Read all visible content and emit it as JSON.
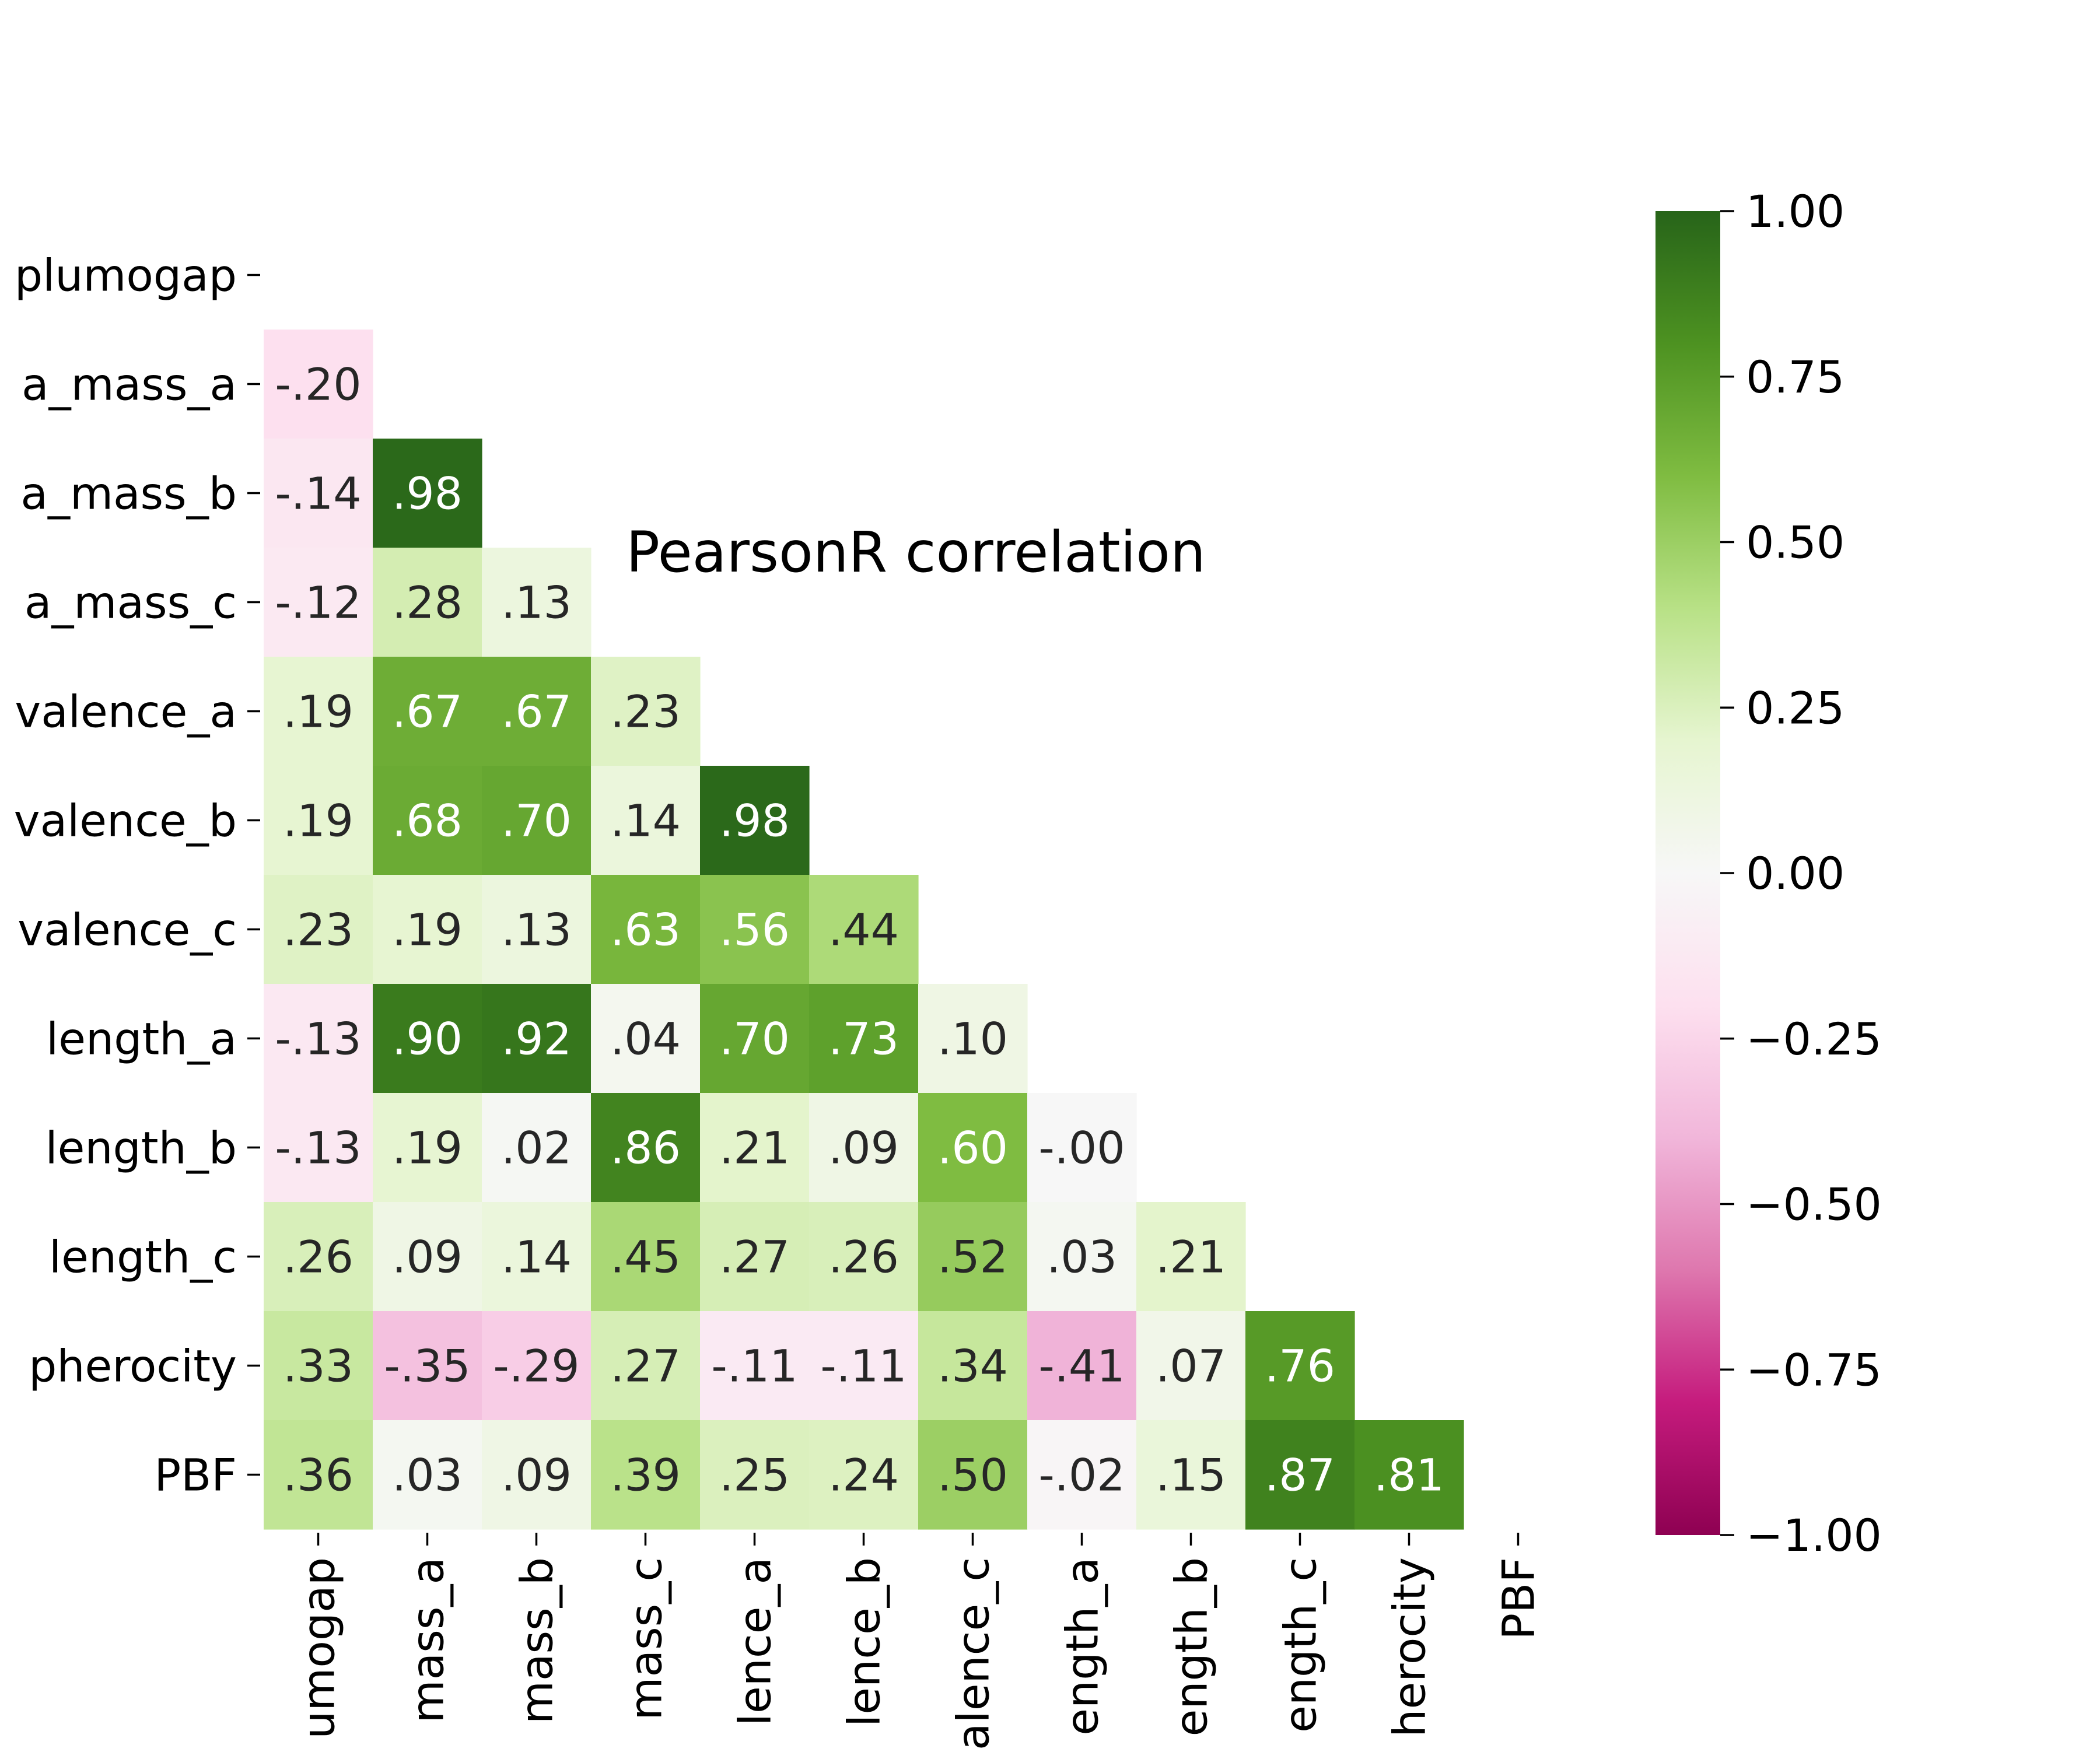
{
  "chart_data": {
    "type": "heatmap",
    "title": "PearsonR correlation",
    "xlabel": "",
    "ylabel": "",
    "mask": "upper-triangle-including-diagonal",
    "row_labels": [
      "plumogap",
      "a_mass_a",
      "a_mass_b",
      "a_mass_c",
      "valence_a",
      "valence_b",
      "valence_c",
      "length_a",
      "length_b",
      "length_c",
      "pherocity",
      "PBF"
    ],
    "col_labels": [
      "umogap",
      "mass_a",
      "mass_b",
      "mass_c",
      "lence_a",
      "lence_b",
      "alence_c",
      "ength_a",
      "ength_b",
      "ength_c",
      "herocity",
      "PBF"
    ],
    "cells": [
      {
        "row": 1,
        "col": 0,
        "value": -0.2,
        "label": "-.20"
      },
      {
        "row": 2,
        "col": 0,
        "value": -0.14,
        "label": "-.14"
      },
      {
        "row": 2,
        "col": 1,
        "value": 0.98,
        "label": ".98"
      },
      {
        "row": 3,
        "col": 0,
        "value": -0.12,
        "label": "-.12"
      },
      {
        "row": 3,
        "col": 1,
        "value": 0.28,
        "label": ".28"
      },
      {
        "row": 3,
        "col": 2,
        "value": 0.13,
        "label": ".13"
      },
      {
        "row": 4,
        "col": 0,
        "value": 0.19,
        "label": ".19"
      },
      {
        "row": 4,
        "col": 1,
        "value": 0.67,
        "label": ".67"
      },
      {
        "row": 4,
        "col": 2,
        "value": 0.67,
        "label": ".67"
      },
      {
        "row": 4,
        "col": 3,
        "value": 0.23,
        "label": ".23"
      },
      {
        "row": 5,
        "col": 0,
        "value": 0.19,
        "label": ".19"
      },
      {
        "row": 5,
        "col": 1,
        "value": 0.68,
        "label": ".68"
      },
      {
        "row": 5,
        "col": 2,
        "value": 0.7,
        "label": ".70"
      },
      {
        "row": 5,
        "col": 3,
        "value": 0.14,
        "label": ".14"
      },
      {
        "row": 5,
        "col": 4,
        "value": 0.98,
        "label": ".98"
      },
      {
        "row": 6,
        "col": 0,
        "value": 0.23,
        "label": ".23"
      },
      {
        "row": 6,
        "col": 1,
        "value": 0.19,
        "label": ".19"
      },
      {
        "row": 6,
        "col": 2,
        "value": 0.13,
        "label": ".13"
      },
      {
        "row": 6,
        "col": 3,
        "value": 0.63,
        "label": ".63"
      },
      {
        "row": 6,
        "col": 4,
        "value": 0.56,
        "label": ".56"
      },
      {
        "row": 6,
        "col": 5,
        "value": 0.44,
        "label": ".44"
      },
      {
        "row": 7,
        "col": 0,
        "value": -0.13,
        "label": "-.13"
      },
      {
        "row": 7,
        "col": 1,
        "value": 0.9,
        "label": ".90"
      },
      {
        "row": 7,
        "col": 2,
        "value": 0.92,
        "label": ".92"
      },
      {
        "row": 7,
        "col": 3,
        "value": 0.04,
        "label": ".04"
      },
      {
        "row": 7,
        "col": 4,
        "value": 0.7,
        "label": ".70"
      },
      {
        "row": 7,
        "col": 5,
        "value": 0.73,
        "label": ".73"
      },
      {
        "row": 7,
        "col": 6,
        "value": 0.1,
        "label": ".10"
      },
      {
        "row": 8,
        "col": 0,
        "value": -0.13,
        "label": "-.13"
      },
      {
        "row": 8,
        "col": 1,
        "value": 0.19,
        "label": ".19"
      },
      {
        "row": 8,
        "col": 2,
        "value": 0.02,
        "label": ".02"
      },
      {
        "row": 8,
        "col": 3,
        "value": 0.86,
        "label": ".86"
      },
      {
        "row": 8,
        "col": 4,
        "value": 0.21,
        "label": ".21"
      },
      {
        "row": 8,
        "col": 5,
        "value": 0.09,
        "label": ".09"
      },
      {
        "row": 8,
        "col": 6,
        "value": 0.6,
        "label": ".60"
      },
      {
        "row": 8,
        "col": 7,
        "value": -0.0,
        "label": "-.00"
      },
      {
        "row": 9,
        "col": 0,
        "value": 0.26,
        "label": ".26"
      },
      {
        "row": 9,
        "col": 1,
        "value": 0.09,
        "label": ".09"
      },
      {
        "row": 9,
        "col": 2,
        "value": 0.14,
        "label": ".14"
      },
      {
        "row": 9,
        "col": 3,
        "value": 0.45,
        "label": ".45"
      },
      {
        "row": 9,
        "col": 4,
        "value": 0.27,
        "label": ".27"
      },
      {
        "row": 9,
        "col": 5,
        "value": 0.26,
        "label": ".26"
      },
      {
        "row": 9,
        "col": 6,
        "value": 0.52,
        "label": ".52"
      },
      {
        "row": 9,
        "col": 7,
        "value": 0.03,
        "label": ".03"
      },
      {
        "row": 9,
        "col": 8,
        "value": 0.21,
        "label": ".21"
      },
      {
        "row": 10,
        "col": 0,
        "value": 0.33,
        "label": ".33"
      },
      {
        "row": 10,
        "col": 1,
        "value": -0.35,
        "label": "-.35"
      },
      {
        "row": 10,
        "col": 2,
        "value": -0.29,
        "label": "-.29"
      },
      {
        "row": 10,
        "col": 3,
        "value": 0.27,
        "label": ".27"
      },
      {
        "row": 10,
        "col": 4,
        "value": -0.11,
        "label": "-.11"
      },
      {
        "row": 10,
        "col": 5,
        "value": -0.11,
        "label": "-.11"
      },
      {
        "row": 10,
        "col": 6,
        "value": 0.34,
        "label": ".34"
      },
      {
        "row": 10,
        "col": 7,
        "value": -0.41,
        "label": "-.41"
      },
      {
        "row": 10,
        "col": 8,
        "value": 0.07,
        "label": ".07"
      },
      {
        "row": 10,
        "col": 9,
        "value": 0.76,
        "label": ".76"
      },
      {
        "row": 11,
        "col": 0,
        "value": 0.36,
        "label": ".36"
      },
      {
        "row": 11,
        "col": 1,
        "value": 0.03,
        "label": ".03"
      },
      {
        "row": 11,
        "col": 2,
        "value": 0.09,
        "label": ".09"
      },
      {
        "row": 11,
        "col": 3,
        "value": 0.39,
        "label": ".39"
      },
      {
        "row": 11,
        "col": 4,
        "value": 0.25,
        "label": ".25"
      },
      {
        "row": 11,
        "col": 5,
        "value": 0.24,
        "label": ".24"
      },
      {
        "row": 11,
        "col": 6,
        "value": 0.5,
        "label": ".50"
      },
      {
        "row": 11,
        "col": 7,
        "value": -0.02,
        "label": "-.02"
      },
      {
        "row": 11,
        "col": 8,
        "value": 0.15,
        "label": ".15"
      },
      {
        "row": 11,
        "col": 9,
        "value": 0.87,
        "label": ".87"
      },
      {
        "row": 11,
        "col": 10,
        "value": 0.81,
        "label": ".81"
      }
    ],
    "colorbar": {
      "range": [
        -1,
        1
      ],
      "ticks": [
        1.0,
        0.75,
        0.5,
        0.25,
        0.0,
        -0.25,
        -0.5,
        -0.75,
        -1.0
      ],
      "tick_labels": [
        "1.00",
        "0.75",
        "0.50",
        "0.25",
        "0.00",
        "−0.25",
        "−0.50",
        "−0.75",
        "−1.00"
      ],
      "colormap": "PiYG",
      "color_stops": [
        "#8e0152",
        "#c51b7d",
        "#de77ae",
        "#f1b6da",
        "#fde0ef",
        "#f7f7f7",
        "#e6f5d0",
        "#b8e186",
        "#7fbc41",
        "#4d9221",
        "#276419"
      ]
    }
  }
}
